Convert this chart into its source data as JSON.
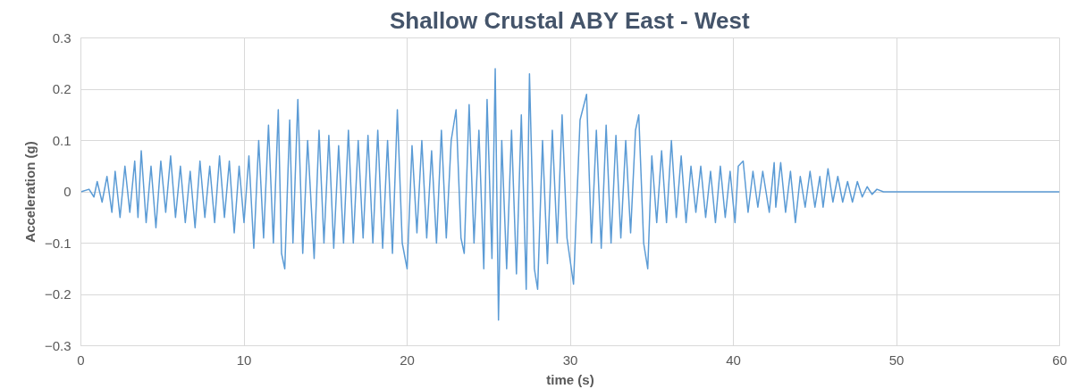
{
  "chart_data": {
    "type": "line",
    "title": "Shallow Crustal ABY East - West",
    "xlabel": "time (s)",
    "ylabel": "Acceleration (g)",
    "xlim": [
      0,
      60
    ],
    "ylim": [
      -0.3,
      0.3
    ],
    "xticks": [
      0,
      10,
      20,
      30,
      40,
      50,
      60
    ],
    "yticks": [
      -0.3,
      -0.2,
      -0.1,
      0,
      0.1,
      0.2,
      0.3
    ],
    "grid": true,
    "series": [
      {
        "color": "#5b9bd5",
        "x": [
          0,
          0.5,
          0.8,
          1.0,
          1.3,
          1.6,
          1.9,
          2.1,
          2.4,
          2.7,
          3.0,
          3.3,
          3.5,
          3.7,
          4.0,
          4.3,
          4.6,
          4.9,
          5.2,
          5.5,
          5.8,
          6.1,
          6.4,
          6.7,
          7.0,
          7.3,
          7.6,
          7.9,
          8.2,
          8.5,
          8.8,
          9.1,
          9.4,
          9.7,
          10.0,
          10.3,
          10.6,
          10.9,
          11.2,
          11.5,
          11.8,
          12.1,
          12.3,
          12.5,
          12.8,
          13.0,
          13.3,
          13.6,
          13.9,
          14.3,
          14.6,
          14.9,
          15.2,
          15.5,
          15.8,
          16.1,
          16.4,
          16.7,
          17.0,
          17.3,
          17.6,
          17.9,
          18.2,
          18.5,
          18.8,
          19.1,
          19.4,
          19.7,
          20.0,
          20.3,
          20.6,
          20.9,
          21.2,
          21.5,
          21.8,
          22.1,
          22.4,
          22.7,
          23.0,
          23.3,
          23.5,
          23.8,
          24.1,
          24.4,
          24.7,
          24.9,
          25.2,
          25.4,
          25.6,
          25.8,
          26.1,
          26.4,
          26.7,
          27.0,
          27.3,
          27.5,
          27.8,
          28.0,
          28.3,
          28.6,
          28.9,
          29.2,
          29.5,
          29.8,
          30.2,
          30.6,
          31.0,
          31.3,
          31.6,
          31.9,
          32.2,
          32.5,
          32.8,
          33.1,
          33.4,
          33.7,
          34.0,
          34.2,
          34.5,
          34.75,
          35.0,
          35.3,
          35.6,
          35.9,
          36.2,
          36.5,
          36.8,
          37.1,
          37.4,
          37.7,
          38.0,
          38.3,
          38.6,
          38.9,
          39.2,
          39.5,
          39.8,
          40.1,
          40.3,
          40.6,
          40.9,
          41.2,
          41.5,
          41.8,
          42.2,
          42.5,
          42.6,
          42.9,
          43.2,
          43.5,
          43.8,
          44.1,
          44.4,
          44.7,
          45.0,
          45.3,
          45.5,
          45.8,
          46.1,
          46.4,
          46.7,
          47.0,
          47.3,
          47.6,
          47.9,
          48.2,
          48.5,
          48.8,
          49.2,
          50.0,
          60.0
        ],
        "values": [
          0,
          0.005,
          -0.01,
          0.02,
          -0.02,
          0.03,
          -0.04,
          0.04,
          -0.05,
          0.05,
          -0.04,
          0.06,
          -0.05,
          0.08,
          -0.06,
          0.05,
          -0.07,
          0.06,
          -0.04,
          0.07,
          -0.05,
          0.05,
          -0.06,
          0.04,
          -0.07,
          0.06,
          -0.05,
          0.05,
          -0.06,
          0.07,
          -0.05,
          0.06,
          -0.08,
          0.05,
          -0.06,
          0.07,
          -0.11,
          0.1,
          -0.09,
          0.13,
          -0.1,
          0.16,
          -0.12,
          -0.15,
          0.14,
          -0.1,
          0.18,
          -0.12,
          0.1,
          -0.13,
          0.12,
          -0.1,
          0.11,
          -0.11,
          0.09,
          -0.1,
          0.12,
          -0.1,
          0.1,
          -0.09,
          0.11,
          -0.1,
          0.12,
          -0.11,
          0.1,
          -0.12,
          0.16,
          -0.1,
          -0.15,
          0.09,
          -0.08,
          0.1,
          -0.09,
          0.08,
          -0.1,
          0.12,
          -0.09,
          0.1,
          0.16,
          -0.09,
          -0.12,
          0.17,
          -0.1,
          0.12,
          -0.15,
          0.18,
          -0.13,
          0.24,
          -0.25,
          0.1,
          -0.15,
          0.12,
          -0.16,
          0.15,
          -0.19,
          0.23,
          -0.15,
          -0.19,
          0.1,
          -0.14,
          0.12,
          -0.1,
          0.15,
          -0.09,
          -0.18,
          0.14,
          0.19,
          -0.1,
          0.12,
          -0.11,
          0.13,
          -0.1,
          0.11,
          -0.09,
          0.1,
          -0.08,
          0.12,
          0.15,
          -0.1,
          -0.15,
          0.07,
          -0.06,
          0.08,
          -0.06,
          0.1,
          -0.05,
          0.07,
          -0.06,
          0.05,
          -0.04,
          0.05,
          -0.05,
          0.04,
          -0.06,
          0.05,
          -0.05,
          0.04,
          -0.06,
          0.05,
          0.06,
          -0.04,
          0.04,
          -0.03,
          0.04,
          -0.04,
          0.057,
          -0.03,
          0.057,
          -0.04,
          0.04,
          -0.06,
          0.03,
          -0.03,
          0.04,
          -0.03,
          0.03,
          -0.03,
          0.045,
          -0.02,
          0.03,
          -0.02,
          0.02,
          -0.02,
          0.02,
          -0.01,
          0.01,
          -0.005,
          0.005,
          0,
          0,
          0
        ]
      }
    ]
  }
}
